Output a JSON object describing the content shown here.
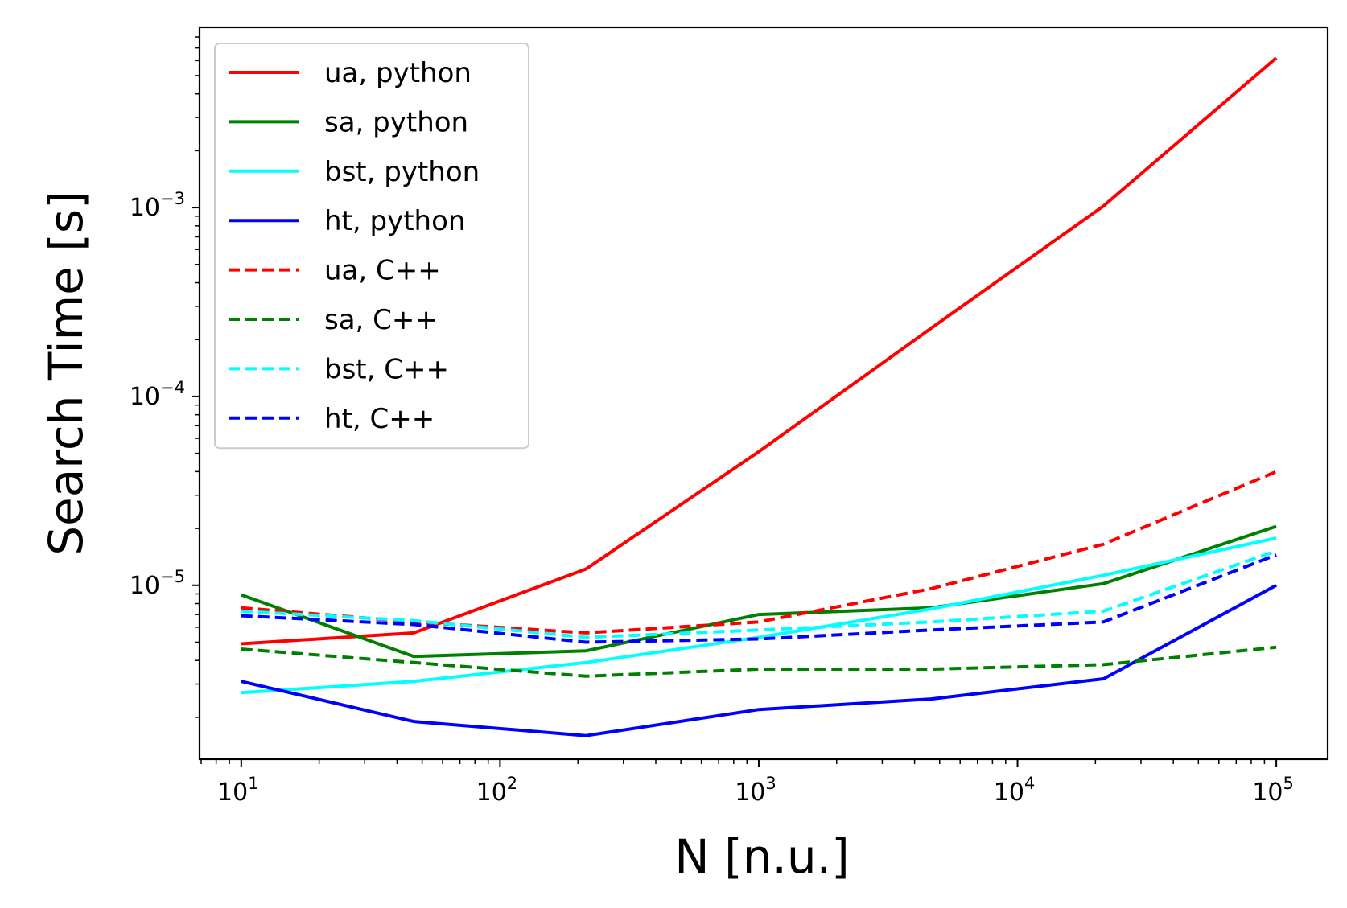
{
  "chart_data": {
    "type": "line",
    "title": "",
    "xlabel": "N [n.u.]",
    "ylabel": "Search Time [s]",
    "xscale": "log",
    "yscale": "log",
    "xlim": [
      6.9,
      158000
    ],
    "ylim": [
      1.2e-06,
      0.009
    ],
    "x_ticks": [
      {
        "value": 10,
        "base": "10",
        "exp": "1"
      },
      {
        "value": 100,
        "base": "10",
        "exp": "2"
      },
      {
        "value": 1000,
        "base": "10",
        "exp": "3"
      },
      {
        "value": 10000,
        "base": "10",
        "exp": "4"
      },
      {
        "value": 100000,
        "base": "10",
        "exp": "5"
      }
    ],
    "y_ticks": [
      {
        "value": 1e-05,
        "base": "10",
        "exp": "−5"
      },
      {
        "value": 0.0001,
        "base": "10",
        "exp": "−4"
      },
      {
        "value": 0.001,
        "base": "10",
        "exp": "−3"
      }
    ],
    "grid": false,
    "legend_position": "top-left",
    "x": [
      10,
      46.4,
      215,
      1000,
      4640,
      21500,
      100000
    ],
    "series": [
      {
        "name": "ua, python",
        "color": "#ff0000",
        "dash": "solid",
        "values": [
          4.9e-06,
          5.6e-06,
          1.22e-05,
          5.1e-05,
          0.00023,
          0.00102,
          0.0062
        ]
      },
      {
        "name": "sa, python",
        "color": "#008000",
        "dash": "solid",
        "values": [
          8.9e-06,
          4.2e-06,
          4.5e-06,
          7e-06,
          7.6e-06,
          1.02e-05,
          2.05e-05
        ]
      },
      {
        "name": "bst, python",
        "color": "#00ffff",
        "dash": "solid",
        "values": [
          2.7e-06,
          3.1e-06,
          3.9e-06,
          5.3e-06,
          7.5e-06,
          1.13e-05,
          1.78e-05
        ]
      },
      {
        "name": "ht, python",
        "color": "#0000ff",
        "dash": "solid",
        "values": [
          3.1e-06,
          1.9e-06,
          1.6e-06,
          2.2e-06,
          2.5e-06,
          3.2e-06,
          1e-05
        ]
      },
      {
        "name": "ua, C++",
        "color": "#ff0000",
        "dash": "dashed",
        "values": [
          7.6e-06,
          6.4e-06,
          5.6e-06,
          6.4e-06,
          9.6e-06,
          1.65e-05,
          4e-05
        ]
      },
      {
        "name": "sa, C++",
        "color": "#008000",
        "dash": "dashed",
        "values": [
          4.6e-06,
          3.9e-06,
          3.3e-06,
          3.6e-06,
          3.6e-06,
          3.8e-06,
          4.7e-06
        ]
      },
      {
        "name": "bst, C++",
        "color": "#00ffff",
        "dash": "dashed",
        "values": [
          7.3e-06,
          6.5e-06,
          5.3e-06,
          5.8e-06,
          6.4e-06,
          7.3e-06,
          1.52e-05
        ]
      },
      {
        "name": "ht, C++",
        "color": "#0000ff",
        "dash": "dashed",
        "values": [
          6.9e-06,
          6.2e-06,
          5e-06,
          5.2e-06,
          5.8e-06,
          6.4e-06,
          1.45e-05
        ]
      }
    ]
  }
}
